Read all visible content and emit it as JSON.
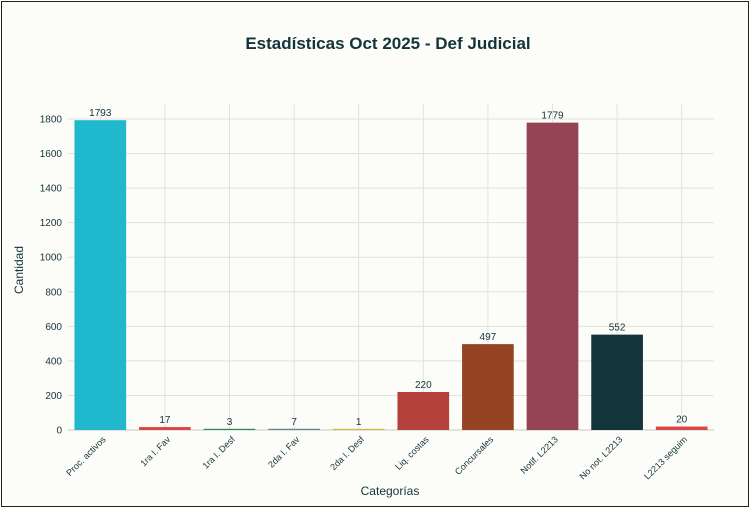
{
  "chart_data": {
    "type": "bar",
    "title": "Estadísticas Oct 2025 - Def Judicial",
    "xlabel": "Categorías",
    "ylabel": "Cantidad",
    "ylim": [
      0,
      1900
    ],
    "yticks": [
      0,
      200,
      400,
      600,
      800,
      1000,
      1200,
      1400,
      1600,
      1800
    ],
    "grid": true,
    "legend": "none",
    "categories": [
      "Proc. activos",
      "1ra I. Fav",
      "1ra I. Desf",
      "2da I. Fav",
      "2da I. Desf",
      "Liq. costas",
      "Concursales",
      "Notif. L2213",
      "No not. L2213",
      "L2213 seguim"
    ],
    "values": [
      1793,
      17,
      3,
      7,
      1,
      220,
      497,
      1779,
      552,
      20
    ],
    "colors": [
      "#1fb8cd",
      "#db4545",
      "#2e8b57",
      "#5d878f",
      "#d2ba4c",
      "#b4413c",
      "#964325",
      "#944454",
      "#13343b",
      "#db4545"
    ]
  }
}
